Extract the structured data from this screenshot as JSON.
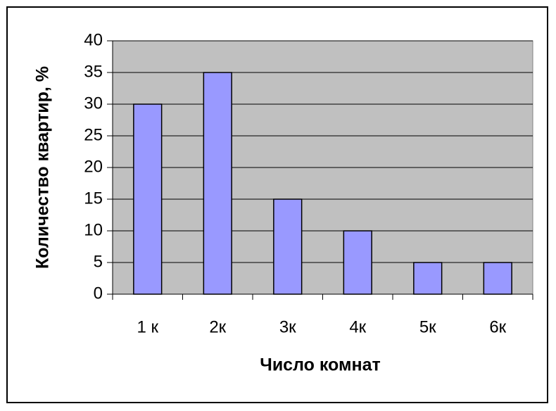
{
  "chart_data": {
    "type": "bar",
    "x_label": "Число комнат",
    "y_label": "Количество квартир, %",
    "categories": [
      "1 к",
      "2к",
      "3к",
      "4к",
      "5к",
      "6к"
    ],
    "values": [
      30,
      35,
      15,
      10,
      5,
      5
    ],
    "color": "#9999ff",
    "plot_background": "#c0c0c0",
    "ylim": [
      0,
      40
    ],
    "yticks": [
      0,
      5,
      10,
      15,
      20,
      25,
      30,
      35,
      40
    ],
    "grid": true
  }
}
